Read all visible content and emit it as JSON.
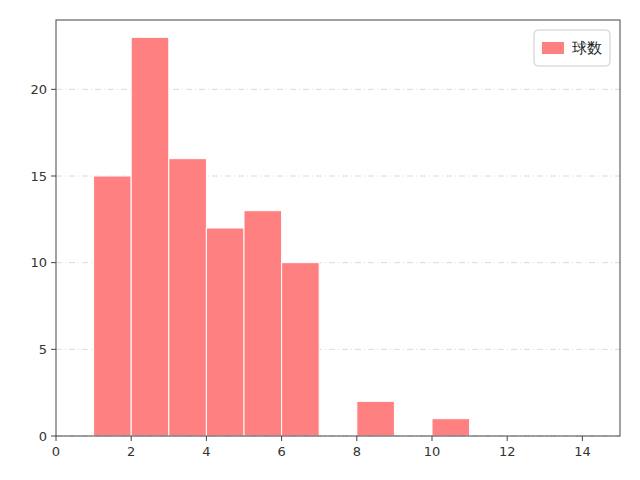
{
  "chart_data": {
    "type": "bar",
    "x": [
      1,
      2,
      3,
      4,
      5,
      6,
      8,
      10
    ],
    "series": [
      {
        "name": "球数",
        "color": "#FF8080",
        "values": [
          15,
          23,
          16,
          12,
          13,
          10,
          2,
          1
        ]
      }
    ],
    "xlim": [
      0,
      15
    ],
    "xticks": [
      0,
      2,
      4,
      6,
      8,
      10,
      12,
      14
    ],
    "ylim": [
      0,
      24
    ],
    "yticks": [
      0,
      5,
      10,
      15,
      20
    ],
    "grid": "y",
    "legend": "upper right"
  }
}
